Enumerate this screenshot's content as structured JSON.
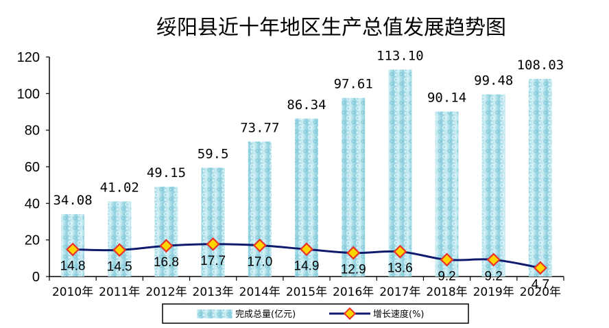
{
  "chart_data": {
    "type": "bar",
    "title": "绥阳县近十年地区生产总值发展趋势图",
    "categories": [
      "2010年",
      "2011年",
      "2012年",
      "2013年",
      "2014年",
      "2015年",
      "2016年",
      "2017年",
      "2018年",
      "2019年",
      "2020年"
    ],
    "ylim": [
      0,
      120
    ],
    "yticks": [
      "0",
      "20",
      "40",
      "60",
      "80",
      "100",
      "120"
    ],
    "grid": false,
    "legend_position": "bottom",
    "series": [
      {
        "name": "完成总量(亿元)",
        "type": "bar",
        "color": "#9ed8e4",
        "values": [
          34.08,
          41.02,
          49.15,
          59.5,
          73.77,
          86.34,
          97.61,
          113.1,
          90.14,
          99.48,
          108.03
        ],
        "labels": [
          "34.08",
          "41.02",
          "49.15",
          "59.5",
          "73.77",
          "86.34",
          "97.61",
          "113.10",
          "90.14",
          "99.48",
          "108.03"
        ]
      },
      {
        "name": "增长速度(%)",
        "type": "line",
        "color": "#0d1a6e",
        "marker_color": "#e8322a",
        "marker_fill": "#ffd500",
        "values": [
          14.8,
          14.5,
          16.8,
          17.7,
          17.0,
          14.9,
          12.9,
          13.6,
          9.2,
          9.2,
          4.7
        ],
        "labels": [
          "14.8",
          "14.5",
          "16.8",
          "17.7",
          "17.0",
          "14.9",
          "12.9",
          "13.6",
          "9.2",
          "9.2",
          "4.7"
        ]
      }
    ]
  }
}
